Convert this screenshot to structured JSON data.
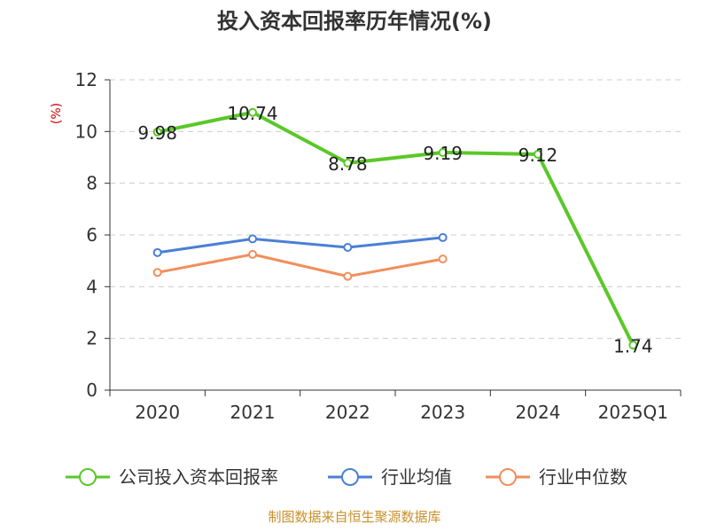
{
  "chart_data": {
    "type": "line",
    "title": "投入资本回报率历年情况(%)",
    "ylabel": "(%)",
    "xlabel": "",
    "ylim": [
      0,
      12
    ],
    "yticks": [
      0,
      2,
      4,
      6,
      8,
      10,
      12
    ],
    "grid": true,
    "categories": [
      "2020",
      "2021",
      "2022",
      "2023",
      "2024",
      "2025Q1"
    ],
    "series": [
      {
        "name": "公司投入资本回报率",
        "color": "#5ac828",
        "values": [
          9.98,
          10.74,
          8.78,
          9.19,
          9.12,
          1.74
        ],
        "labels": [
          "9.98",
          "10.74",
          "8.78",
          "9.19",
          "9.12",
          "1.74"
        ]
      },
      {
        "name": "行业均值",
        "color": "#4a7fd6",
        "values": [
          5.32,
          5.85,
          5.52,
          5.9,
          null,
          null
        ],
        "labels": null
      },
      {
        "name": "行业中位数",
        "color": "#f28e5b",
        "values": [
          4.55,
          5.25,
          4.4,
          5.07,
          null,
          null
        ],
        "labels": null
      }
    ],
    "legend_position": "bottom"
  },
  "source_text": "制图数据来自恒生聚源数据库"
}
